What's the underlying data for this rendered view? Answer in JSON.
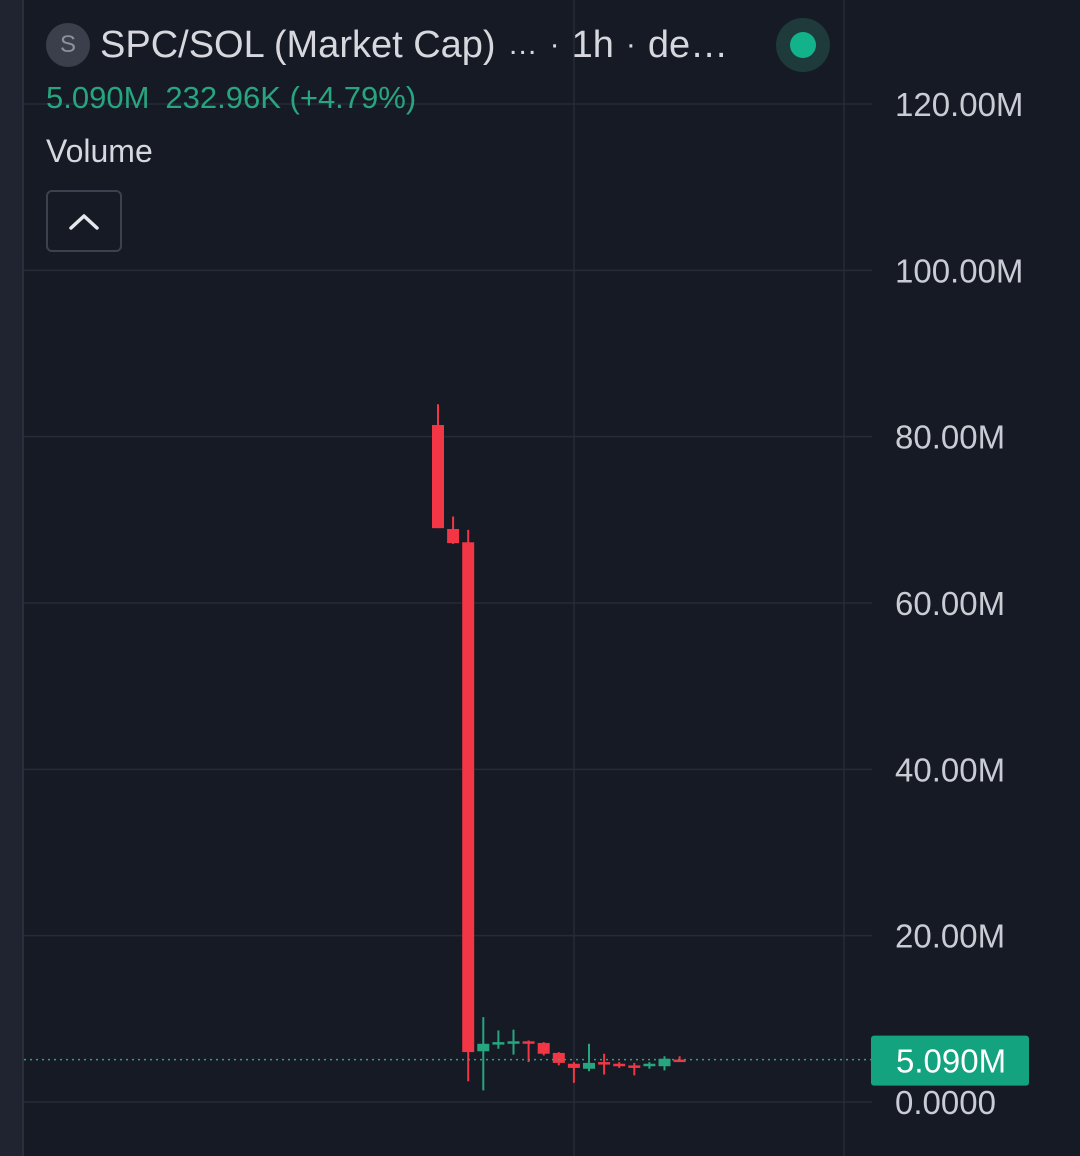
{
  "header": {
    "symbol_badge": "S",
    "pair_title": "SPC/SOL (Market Cap)",
    "ellipsis": "…",
    "separator": "·",
    "interval": "1h",
    "exchange_truncated": "de…",
    "current_value": "5.090M",
    "change_text": "232.96K (+4.79%)"
  },
  "indicator": {
    "volume_label": "Volume"
  },
  "icons": {
    "collapse": "chevron-up-icon",
    "live": "live-status-dot-icon"
  },
  "colors": {
    "background": "#161a25",
    "up": "#27a57f",
    "down": "#f23645",
    "grid": "#262b37",
    "axis_text": "#c9ccd3",
    "last_price_bg": "#14a37f"
  },
  "chart_data": {
    "type": "candlestick",
    "title": "SPC/SOL (Market Cap)",
    "interval": "1h",
    "y_axis": {
      "min": 0,
      "max": 120000000,
      "ticks": [
        {
          "value": 120000000,
          "label": "120.00M"
        },
        {
          "value": 100000000,
          "label": "100.00M"
        },
        {
          "value": 80000000,
          "label": "80.00M"
        },
        {
          "value": 60000000,
          "label": "60.00M"
        },
        {
          "value": 40000000,
          "label": "40.00M"
        },
        {
          "value": 20000000,
          "label": "20.00M"
        },
        {
          "value": 0,
          "label": "0.0000"
        }
      ]
    },
    "last_price": {
      "value": 5090000,
      "label": "5.090M"
    },
    "grid": true,
    "candles": [
      {
        "open": 81.4,
        "high": 83.9,
        "low": 69.0,
        "close": 69.0
      },
      {
        "open": 68.9,
        "high": 70.4,
        "low": 67.1,
        "close": 67.2
      },
      {
        "open": 67.3,
        "high": 68.8,
        "low": 2.5,
        "close": 6.0
      },
      {
        "open": 6.1,
        "high": 10.2,
        "low": 1.4,
        "close": 7.0
      },
      {
        "open": 7.1,
        "high": 8.6,
        "low": 6.4,
        "close": 7.2
      },
      {
        "open": 7.2,
        "high": 8.7,
        "low": 5.7,
        "close": 7.3
      },
      {
        "open": 7.3,
        "high": 7.4,
        "low": 4.8,
        "close": 7.2
      },
      {
        "open": 7.1,
        "high": 7.2,
        "low": 5.6,
        "close": 5.8
      },
      {
        "open": 5.9,
        "high": 6.0,
        "low": 4.4,
        "close": 4.7
      },
      {
        "open": 4.6,
        "high": 4.8,
        "low": 2.3,
        "close": 4.1
      },
      {
        "open": 4.0,
        "high": 7.0,
        "low": 3.7,
        "close": 4.7
      },
      {
        "open": 4.8,
        "high": 5.8,
        "low": 3.3,
        "close": 4.6
      },
      {
        "open": 4.6,
        "high": 4.8,
        "low": 4.1,
        "close": 4.4
      },
      {
        "open": 4.4,
        "high": 4.7,
        "low": 3.2,
        "close": 4.3
      },
      {
        "open": 4.4,
        "high": 4.8,
        "low": 4.0,
        "close": 4.6
      },
      {
        "open": 4.3,
        "high": 5.5,
        "low": 3.8,
        "close": 5.2
      },
      {
        "open": 5.1,
        "high": 5.5,
        "low": 4.9,
        "close": 5.09
      }
    ]
  }
}
